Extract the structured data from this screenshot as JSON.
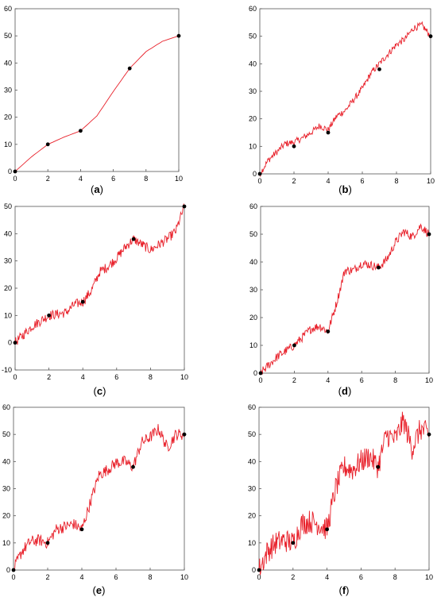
{
  "chart_data": [
    {
      "type": "line",
      "caption": "(a)",
      "xlim": [
        0,
        10
      ],
      "ylim": [
        0,
        60
      ],
      "xticks": [
        0,
        2,
        4,
        6,
        8,
        10
      ],
      "yticks": [
        0,
        10,
        20,
        30,
        40,
        50,
        60
      ],
      "line_color": "#e8202a",
      "marker_color": "#000000",
      "interpolation_points": {
        "x": [
          0,
          2,
          4,
          7,
          10
        ],
        "y": [
          0,
          10,
          15,
          38,
          50
        ]
      },
      "series": [
        {
          "x": [
            0,
            1,
            2,
            3,
            4,
            5,
            6,
            7,
            8,
            9,
            10
          ],
          "y": [
            0,
            5.4,
            10,
            12.7,
            15,
            20.5,
            29.5,
            38,
            44.2,
            48,
            50
          ]
        }
      ]
    },
    {
      "type": "line",
      "caption": "(b)",
      "xlim": [
        0,
        10
      ],
      "ylim": [
        0,
        60
      ],
      "xticks": [
        0,
        2,
        4,
        6,
        8,
        10
      ],
      "yticks": [
        0,
        10,
        20,
        30,
        40,
        50,
        60
      ],
      "line_color": "#e8202a",
      "marker_color": "#000000",
      "interpolation_points": {
        "x": [
          0,
          2,
          4,
          7,
          10
        ],
        "y": [
          0,
          10,
          15,
          38,
          50
        ]
      },
      "series": [
        {
          "x": [
            0,
            0.5,
            1,
            1.5,
            2,
            2.5,
            3,
            3.5,
            4,
            4.5,
            5,
            5.5,
            6,
            6.5,
            7,
            7.5,
            8,
            8.5,
            9,
            9.5,
            10
          ],
          "y": [
            0,
            5,
            8,
            11,
            11.5,
            13,
            15,
            17.5,
            16,
            21,
            23,
            27,
            31,
            36.5,
            40,
            43.5,
            47,
            49,
            53,
            54,
            50
          ]
        }
      ]
    },
    {
      "type": "line",
      "caption": "(c)",
      "xlim": [
        0,
        10
      ],
      "ylim": [
        -10,
        50
      ],
      "xticks": [
        0,
        2,
        4,
        6,
        8,
        10
      ],
      "yticks": [
        -10,
        0,
        10,
        20,
        30,
        40,
        50
      ],
      "line_color": "#e8202a",
      "marker_color": "#000000",
      "interpolation_points": {
        "x": [
          0,
          2,
          4,
          7,
          10
        ],
        "y": [
          0,
          10,
          15,
          38,
          50
        ]
      },
      "series": [
        {
          "x": [
            0,
            0.5,
            1,
            1.5,
            2,
            2.5,
            3,
            3.5,
            4,
            4.5,
            5,
            5.5,
            6,
            6.5,
            7,
            7.5,
            8,
            8.5,
            9,
            9.5,
            10
          ],
          "y": [
            0,
            3,
            6,
            8,
            10,
            10.5,
            11,
            14,
            15,
            19,
            26,
            28,
            31,
            35,
            38,
            36,
            34,
            36,
            38,
            41,
            50
          ]
        }
      ]
    },
    {
      "type": "line",
      "caption": "(d)",
      "xlim": [
        0,
        10
      ],
      "ylim": [
        0,
        60
      ],
      "xticks": [
        0,
        2,
        4,
        6,
        8,
        10
      ],
      "yticks": [
        0,
        10,
        20,
        30,
        40,
        50,
        60
      ],
      "line_color": "#e8202a",
      "marker_color": "#000000",
      "interpolation_points": {
        "x": [
          0,
          2,
          4,
          7,
          10
        ],
        "y": [
          0,
          10,
          15,
          38,
          50
        ]
      },
      "series": [
        {
          "x": [
            0,
            0.5,
            1,
            1.5,
            2,
            2.5,
            3,
            3.5,
            4,
            4.5,
            5,
            5.5,
            6,
            6.5,
            7,
            7.5,
            8,
            8.5,
            9,
            9.5,
            10
          ],
          "y": [
            0,
            3,
            6,
            8,
            10,
            13,
            16,
            17,
            15,
            25,
            37,
            37,
            39.5,
            39,
            38,
            41,
            47,
            51,
            49,
            53,
            50
          ]
        }
      ]
    },
    {
      "type": "line",
      "caption": "(e)",
      "xlim": [
        0,
        10
      ],
      "ylim": [
        0,
        60
      ],
      "xticks": [
        0,
        2,
        4,
        6,
        8,
        10
      ],
      "yticks": [
        0,
        10,
        20,
        30,
        40,
        50,
        60
      ],
      "line_color": "#e8202a",
      "marker_color": "#000000",
      "interpolation_points": {
        "x": [
          0,
          2,
          4,
          7,
          10
        ],
        "y": [
          0,
          10,
          15,
          38,
          50
        ]
      },
      "series": [
        {
          "x": [
            0,
            0.5,
            1,
            1.5,
            2,
            2.5,
            3,
            3.5,
            4,
            4.5,
            5,
            5.5,
            6,
            6.5,
            7,
            7.5,
            8,
            8.5,
            9,
            9.5,
            10
          ],
          "y": [
            0,
            7,
            10.5,
            11,
            10,
            15,
            16,
            17,
            15,
            25,
            35,
            37,
            39.5,
            40,
            38,
            47,
            49,
            52,
            45,
            50,
            50
          ]
        }
      ]
    },
    {
      "type": "line",
      "caption": "(f)",
      "xlim": [
        0,
        10
      ],
      "ylim": [
        0,
        60
      ],
      "xticks": [
        0,
        2,
        4,
        6,
        8,
        10
      ],
      "yticks": [
        0,
        10,
        20,
        30,
        40,
        50,
        60
      ],
      "line_color": "#e8202a",
      "marker_color": "#000000",
      "interpolation_points": {
        "x": [
          0,
          2,
          4,
          7,
          10
        ],
        "y": [
          0,
          10,
          15,
          38,
          50
        ]
      },
      "series": [
        {
          "x": [
            0,
            0.5,
            1,
            1.5,
            2,
            2.5,
            3,
            3.5,
            4,
            4.5,
            5,
            5.5,
            6,
            6.5,
            7,
            7.5,
            8,
            8.5,
            9,
            9.5,
            10
          ],
          "y": [
            0,
            7,
            10,
            11,
            10,
            17,
            18,
            17,
            15,
            30,
            38,
            37,
            40,
            42,
            38,
            50,
            48,
            55,
            45,
            52,
            50
          ]
        }
      ]
    }
  ]
}
